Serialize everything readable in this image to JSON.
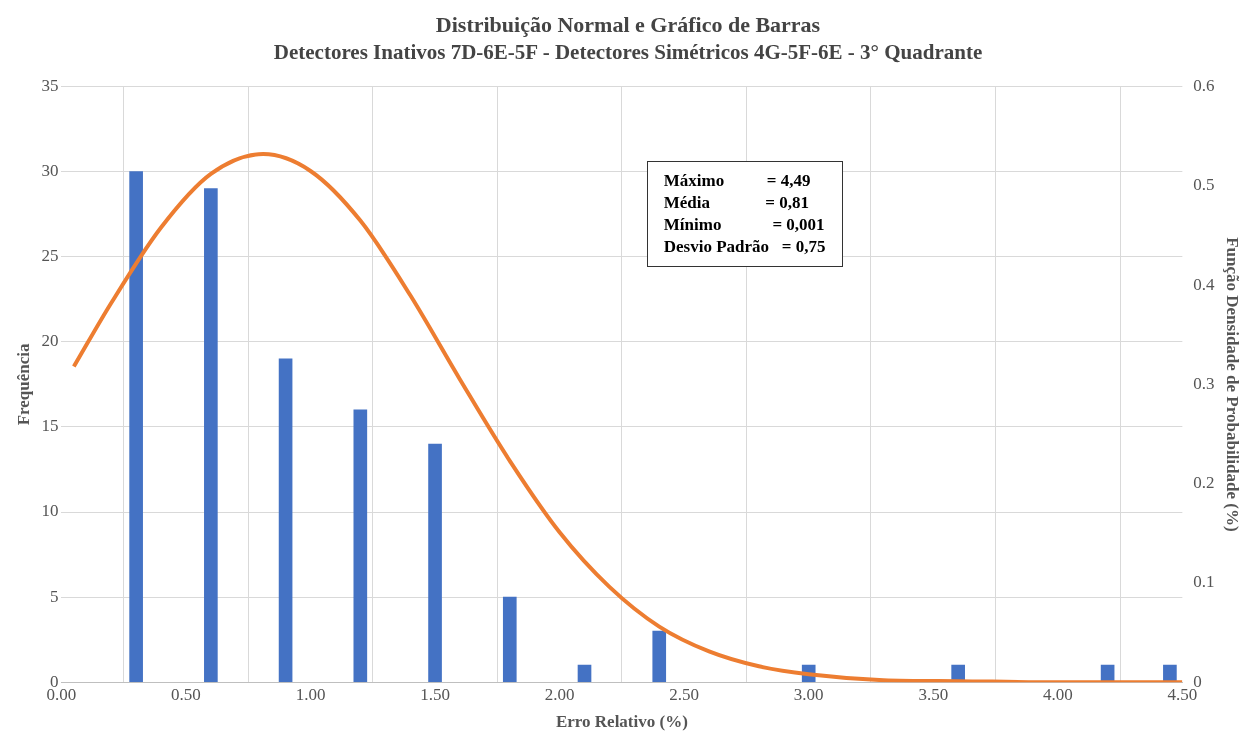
{
  "chart_data": {
    "type": "bar",
    "title": "Distribuição Normal e Gráfico de Barras",
    "subtitle": "Detectores Inativos 7D-6E-5F - Detectores Simétricos 4G-5F-6E - 3° Quadrante",
    "xlabel": "Erro Relativo (%)",
    "ylabel": "Frequência",
    "y2label": "Função Densidade de Probabilidade (%)",
    "series": [
      {
        "color": "#4472c4",
        "x": [
          0.3,
          0.6,
          0.9,
          1.2,
          1.5,
          1.8,
          2.1,
          2.4,
          3.0,
          3.6,
          4.2,
          4.45
        ],
        "values": [
          30,
          29,
          19,
          16,
          14,
          5,
          1,
          3,
          1,
          1,
          1,
          1
        ]
      },
      {
        "type": "line",
        "axis": "y2",
        "color": "#ed7d31",
        "x": [
          0.05,
          0.2,
          0.4,
          0.6,
          0.81,
          1.0,
          1.2,
          1.4,
          1.6,
          1.8,
          2.0,
          2.2,
          2.4,
          2.6,
          2.8,
          3.0,
          3.3,
          3.6,
          4.0,
          4.5
        ],
        "values": [
          0.318,
          0.382,
          0.458,
          0.512,
          0.532,
          0.515,
          0.465,
          0.39,
          0.305,
          0.223,
          0.151,
          0.096,
          0.056,
          0.031,
          0.016,
          0.008,
          0.002,
          0.001,
          0,
          0
        ]
      }
    ],
    "xlim": [
      0,
      4.5
    ],
    "xticks": [
      {
        "value": 0,
        "label": "0.00"
      },
      {
        "value": 0.5,
        "label": "0.50"
      },
      {
        "value": 1,
        "label": "1.00"
      },
      {
        "value": 1.5,
        "label": "1.50"
      },
      {
        "value": 2,
        "label": "2.00"
      },
      {
        "value": 2.5,
        "label": "2.50"
      },
      {
        "value": 3,
        "label": "3.00"
      },
      {
        "value": 3.5,
        "label": "3.50"
      },
      {
        "value": 4,
        "label": "4.00"
      },
      {
        "value": 4.5,
        "label": "4.50"
      }
    ],
    "ylim": [
      0,
      35
    ],
    "yticks": [
      0,
      5,
      10,
      15,
      20,
      25,
      30,
      35
    ],
    "y2lim": [
      0,
      0.6
    ],
    "y2ticks": [
      0,
      0.1,
      0.2,
      0.3,
      0.4,
      0.5,
      0.6
    ],
    "annotations": [
      "Máximo          = 4,49",
      "Média             = 0,81",
      "Mínimo            = 0,001",
      "Desvio Padrão   = 0,75"
    ],
    "grid": true,
    "legend": false,
    "marker": "none"
  }
}
